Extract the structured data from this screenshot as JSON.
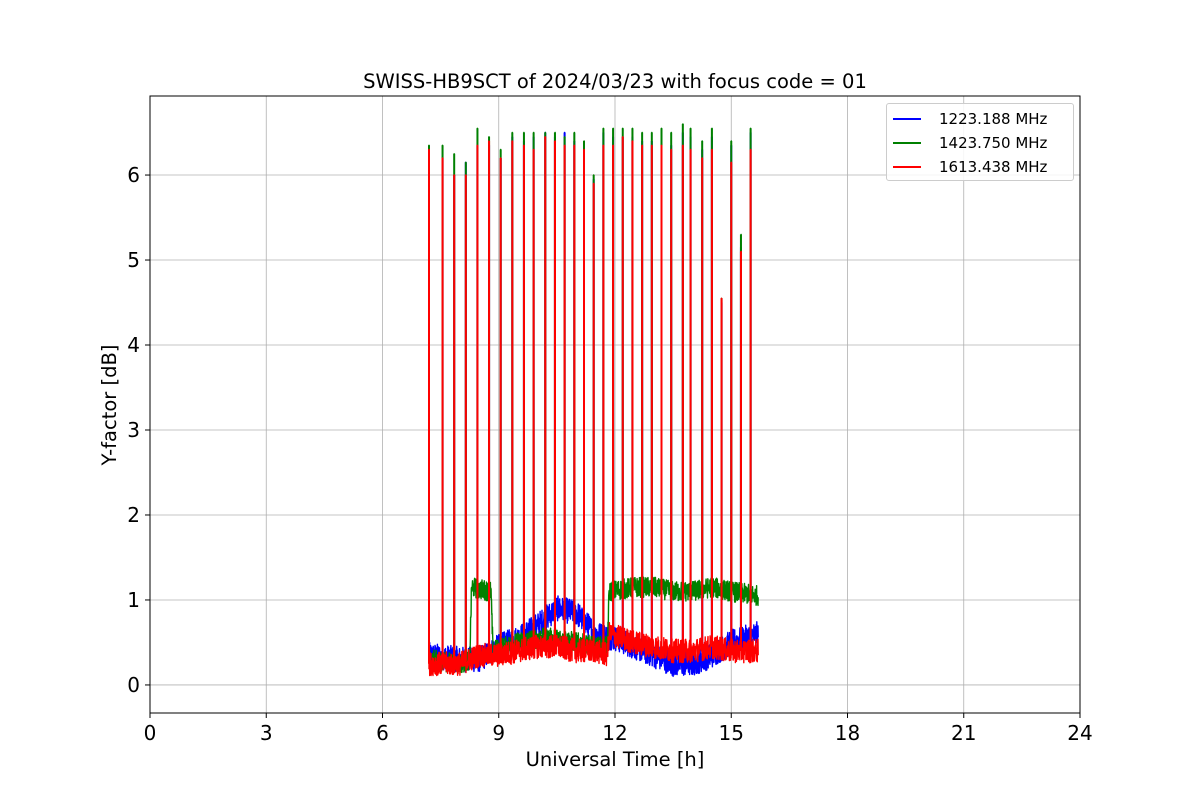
{
  "chart_data": {
    "type": "line",
    "title": "SWISS-HB9SCT of 2024/03/23 with focus code = 01",
    "xlabel": "Universal Time [h]",
    "ylabel": "Y-factor [dB]",
    "xlim": [
      0,
      24
    ],
    "ylim": [
      -0.33,
      6.93
    ],
    "xticks": [
      0,
      3,
      6,
      9,
      12,
      15,
      18,
      21,
      24
    ],
    "yticks": [
      0,
      1,
      2,
      3,
      4,
      5,
      6
    ],
    "grid": true,
    "legend_position": "top-right",
    "series": [
      {
        "name": "1223.188 MHz",
        "color": "#0000ff",
        "baseline": [
          [
            7.2,
            0.35
          ],
          [
            8.0,
            0.3
          ],
          [
            8.5,
            0.3
          ],
          [
            9.0,
            0.45
          ],
          [
            9.5,
            0.55
          ],
          [
            10.0,
            0.7
          ],
          [
            10.5,
            0.9
          ],
          [
            11.0,
            0.85
          ],
          [
            11.5,
            0.6
          ],
          [
            12.0,
            0.55
          ],
          [
            12.5,
            0.45
          ],
          [
            13.0,
            0.35
          ],
          [
            13.5,
            0.25
          ],
          [
            14.0,
            0.25
          ],
          [
            14.5,
            0.35
          ],
          [
            15.0,
            0.5
          ],
          [
            15.7,
            0.6
          ]
        ],
        "noise": 0.15,
        "peaks": [
          [
            7.2,
            6.3
          ],
          [
            7.55,
            6.2
          ],
          [
            7.85,
            6.0
          ],
          [
            8.15,
            6.15
          ],
          [
            8.45,
            6.35
          ],
          [
            8.75,
            6.35
          ],
          [
            9.05,
            6.2
          ],
          [
            9.35,
            6.45
          ],
          [
            9.65,
            6.4
          ],
          [
            9.9,
            6.45
          ],
          [
            10.2,
            6.5
          ],
          [
            10.45,
            6.45
          ],
          [
            10.7,
            6.5
          ],
          [
            10.95,
            6.4
          ],
          [
            11.2,
            6.3
          ],
          [
            11.45,
            5.95
          ],
          [
            11.7,
            6.5
          ],
          [
            11.95,
            6.45
          ],
          [
            12.2,
            6.45
          ],
          [
            12.45,
            6.45
          ],
          [
            12.7,
            6.4
          ],
          [
            12.95,
            6.4
          ],
          [
            13.2,
            6.4
          ],
          [
            13.45,
            6.35
          ],
          [
            13.75,
            6.5
          ],
          [
            13.95,
            6.45
          ],
          [
            14.25,
            6.3
          ],
          [
            14.5,
            6.45
          ],
          [
            14.75,
            4.5
          ],
          [
            15.0,
            6.35
          ],
          [
            15.25,
            5.15
          ],
          [
            15.5,
            6.5
          ]
        ]
      },
      {
        "name": "1423.750 MHz",
        "color": "#008000",
        "baseline": [
          [
            7.2,
            0.3
          ],
          [
            8.0,
            0.25
          ],
          [
            8.25,
            0.3
          ],
          [
            8.3,
            1.15
          ],
          [
            8.8,
            1.1
          ],
          [
            8.85,
            0.4
          ],
          [
            9.5,
            0.5
          ],
          [
            10.0,
            0.55
          ],
          [
            10.5,
            0.55
          ],
          [
            11.0,
            0.5
          ],
          [
            11.5,
            0.45
          ],
          [
            11.8,
            0.45
          ],
          [
            11.85,
            1.1
          ],
          [
            12.5,
            1.15
          ],
          [
            13.0,
            1.15
          ],
          [
            13.5,
            1.1
          ],
          [
            14.0,
            1.1
          ],
          [
            14.5,
            1.15
          ],
          [
            15.0,
            1.1
          ],
          [
            15.7,
            1.05
          ]
        ],
        "noise": 0.12,
        "peaks": [
          [
            7.2,
            6.35
          ],
          [
            7.55,
            6.35
          ],
          [
            7.85,
            6.25
          ],
          [
            8.15,
            6.15
          ],
          [
            8.45,
            6.55
          ],
          [
            8.75,
            6.45
          ],
          [
            9.05,
            6.3
          ],
          [
            9.35,
            6.5
          ],
          [
            9.65,
            6.5
          ],
          [
            9.9,
            6.5
          ],
          [
            10.2,
            6.5
          ],
          [
            10.45,
            6.5
          ],
          [
            10.7,
            6.45
          ],
          [
            10.95,
            6.5
          ],
          [
            11.2,
            6.4
          ],
          [
            11.45,
            6.0
          ],
          [
            11.7,
            6.55
          ],
          [
            11.95,
            6.55
          ],
          [
            12.2,
            6.55
          ],
          [
            12.45,
            6.55
          ],
          [
            12.7,
            6.5
          ],
          [
            12.95,
            6.5
          ],
          [
            13.2,
            6.55
          ],
          [
            13.45,
            6.5
          ],
          [
            13.75,
            6.6
          ],
          [
            13.95,
            6.55
          ],
          [
            14.25,
            6.4
          ],
          [
            14.5,
            6.55
          ],
          [
            14.75,
            4.55
          ],
          [
            15.0,
            6.4
          ],
          [
            15.25,
            5.3
          ],
          [
            15.5,
            6.55
          ]
        ]
      },
      {
        "name": "1613.438 MHz",
        "color": "#ff0000",
        "baseline": [
          [
            7.2,
            0.25
          ],
          [
            8.0,
            0.25
          ],
          [
            8.5,
            0.35
          ],
          [
            9.0,
            0.35
          ],
          [
            9.5,
            0.4
          ],
          [
            10.0,
            0.45
          ],
          [
            10.5,
            0.45
          ],
          [
            11.0,
            0.4
          ],
          [
            11.5,
            0.4
          ],
          [
            11.8,
            0.35
          ],
          [
            11.85,
            0.6
          ],
          [
            12.5,
            0.5
          ],
          [
            13.0,
            0.45
          ],
          [
            13.5,
            0.4
          ],
          [
            14.0,
            0.4
          ],
          [
            14.5,
            0.45
          ],
          [
            15.0,
            0.4
          ],
          [
            15.7,
            0.4
          ]
        ],
        "noise": 0.14,
        "peaks": [
          [
            7.2,
            6.3
          ],
          [
            7.55,
            6.2
          ],
          [
            7.85,
            6.0
          ],
          [
            8.15,
            6.0
          ],
          [
            8.45,
            6.35
          ],
          [
            8.75,
            6.4
          ],
          [
            9.05,
            6.2
          ],
          [
            9.35,
            6.4
          ],
          [
            9.65,
            6.35
          ],
          [
            9.9,
            6.3
          ],
          [
            10.2,
            6.45
          ],
          [
            10.45,
            6.4
          ],
          [
            10.7,
            6.35
          ],
          [
            10.95,
            6.35
          ],
          [
            11.2,
            6.3
          ],
          [
            11.45,
            5.9
          ],
          [
            11.7,
            6.35
          ],
          [
            11.95,
            6.35
          ],
          [
            12.2,
            6.45
          ],
          [
            12.45,
            6.4
          ],
          [
            12.7,
            6.35
          ],
          [
            12.95,
            6.35
          ],
          [
            13.2,
            6.35
          ],
          [
            13.45,
            6.3
          ],
          [
            13.75,
            6.35
          ],
          [
            13.95,
            6.3
          ],
          [
            14.25,
            6.2
          ],
          [
            14.5,
            6.3
          ],
          [
            14.75,
            4.55
          ],
          [
            15.0,
            6.15
          ],
          [
            15.25,
            5.1
          ],
          [
            15.5,
            6.3
          ]
        ]
      }
    ]
  }
}
